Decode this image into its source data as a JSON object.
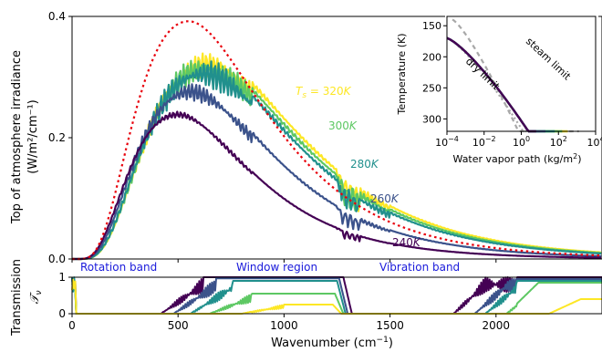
{
  "colors": {
    "240": "#440154",
    "260": "#3b528b",
    "280": "#21908d",
    "300": "#5dc863",
    "320": "#fde725",
    "blackbody": "#e8000b",
    "limits": "#a8a8a8",
    "bands": "#1a1adb"
  },
  "chart_data": [
    {
      "panel": "main",
      "type": "line",
      "ylabel_line1": "Top of atmosphere irradiance",
      "ylabel_line2": "(W/m²/cm⁻¹)",
      "xlim": [
        0,
        2500
      ],
      "ylim": [
        0,
        0.4
      ],
      "y_ticks": [
        "0.0",
        "0.2",
        "0.4"
      ],
      "band_labels": [
        "Rotation band",
        "Window region",
        "Vibration band"
      ],
      "series": [
        {
          "key": "320",
          "label_prefix": "T",
          "label_sub": "s",
          "label_value": " = 320",
          "label_unit": "K",
          "peak": 0.34,
          "peak_x": 640,
          "noise": 0.12
        },
        {
          "key": "300",
          "label_value": "300",
          "label_unit": "K",
          "peak": 0.335,
          "peak_x": 630,
          "noise": 0.13
        },
        {
          "key": "280",
          "label_value": "280",
          "label_unit": "K",
          "peak": 0.33,
          "peak_x": 620,
          "noise": 0.15
        },
        {
          "key": "260",
          "label_value": "260",
          "label_unit": "K",
          "peak": 0.29,
          "peak_x": 560,
          "noise": 0.1
        },
        {
          "key": "240",
          "label_value": "240",
          "label_unit": "K",
          "peak": 0.243,
          "peak_x": 500,
          "noise": 0.04
        }
      ],
      "blackbody_reference": {
        "peak": 0.392,
        "peak_x": 550
      }
    },
    {
      "panel": "transmission",
      "type": "line",
      "ylabel": "Transmission",
      "ylabel_symbol": "𝒯",
      "ylabel_sub": "ν",
      "xlabel_text": "Wavenumber (cm",
      "xlabel_sup": "−1",
      "xlabel_close": ")",
      "xlim": [
        0,
        2500
      ],
      "ylim": [
        0,
        1
      ],
      "x_ticks": [
        "0",
        "500",
        "1000",
        "1500",
        "2000"
      ],
      "y_ticks": [
        "0",
        "1"
      ]
    },
    {
      "panel": "inset",
      "type": "line",
      "xscale": "log",
      "yscale": "inverted",
      "xlim": [
        0.0001,
        10000
      ],
      "ylim": [
        320,
        135
      ],
      "ylabel": "Temperature (K)",
      "xlabel_text": "Water vapor path (kg/m",
      "xlabel_sup": "2",
      "xlabel_close": ")",
      "x_ticks": [
        {
          "base": "10",
          "exp": "−4"
        },
        {
          "base": "10",
          "exp": "−2"
        },
        {
          "base": "10",
          "exp": "0"
        },
        {
          "base": "10",
          "exp": "2"
        },
        {
          "base": "10",
          "exp": "4"
        }
      ],
      "y_ticks": [
        "150",
        "200",
        "250",
        "300"
      ],
      "annotations": [
        "steam limit",
        "dry limit"
      ]
    }
  ]
}
